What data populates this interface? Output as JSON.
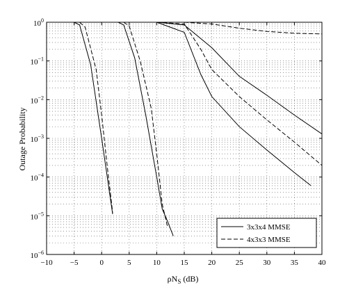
{
  "chart_data": {
    "type": "line",
    "title": "",
    "xlabel": {
      "main": "ρN",
      "sub": "S",
      "tail": " (dB)"
    },
    "ylabel": "Outage Probability",
    "xlim": [
      -10,
      40
    ],
    "ylim": [
      1e-06,
      1
    ],
    "yscale": "log",
    "grid": true,
    "x_ticks": [
      "−10",
      "−5",
      "0",
      "5",
      "10",
      "15",
      "20",
      "25",
      "30",
      "35",
      "40"
    ],
    "y_ticks": [
      {
        "base": "10",
        "exp": "0"
      },
      {
        "base": "10",
        "exp": "−1"
      },
      {
        "base": "10",
        "exp": "−2"
      },
      {
        "base": "10",
        "exp": "−3"
      },
      {
        "base": "10",
        "exp": "−4"
      },
      {
        "base": "10",
        "exp": "−5"
      },
      {
        "base": "10",
        "exp": "−6"
      }
    ],
    "legend": {
      "position": "bottom-right",
      "entries": [
        {
          "label": "3x3x4 MMSE",
          "style": "solid"
        },
        {
          "label": "4x3x3 MMSE",
          "style": "dashed"
        }
      ]
    },
    "series": [
      {
        "group": "3x3x4 MMSE",
        "style": "solid",
        "x": [
          -5,
          -4,
          -2,
          0,
          2
        ],
        "y": [
          1,
          0.85,
          0.08,
          0.001,
          1.1e-05
        ]
      },
      {
        "group": "3x3x4 MMSE",
        "style": "solid",
        "x": [
          3,
          4,
          6,
          8,
          10,
          11,
          12,
          13
        ],
        "y": [
          1,
          0.85,
          0.12,
          0.004,
          0.0001,
          1.5e-05,
          7e-06,
          3e-06
        ]
      },
      {
        "group": "3x3x4 MMSE",
        "style": "solid",
        "x": [
          10,
          15,
          18,
          20,
          25,
          30,
          35,
          38
        ],
        "y": [
          1,
          0.55,
          0.045,
          0.012,
          0.002,
          0.0005,
          0.00013,
          6e-05
        ]
      },
      {
        "group": "3x3x4 MMSE",
        "style": "solid",
        "x": [
          10,
          15,
          20,
          25,
          30,
          35,
          40
        ],
        "y": [
          1,
          0.85,
          0.22,
          0.04,
          0.013,
          0.004,
          0.0013
        ]
      },
      {
        "group": "4x3x3 MMSE",
        "style": "dashed",
        "x": [
          -4,
          -3,
          -1,
          0,
          1,
          2
        ],
        "y": [
          1,
          0.75,
          0.06,
          0.004,
          0.0002,
          1.2e-05
        ]
      },
      {
        "group": "4x3x3 MMSE",
        "style": "dashed",
        "x": [
          4,
          5,
          7,
          9,
          10,
          11,
          12
        ],
        "y": [
          1,
          0.8,
          0.1,
          0.006,
          0.0004,
          2e-05,
          5e-06
        ]
      },
      {
        "group": "4x3x3 MMSE",
        "style": "dashed",
        "x": [
          10,
          15,
          18,
          20,
          25,
          30,
          35,
          40
        ],
        "y": [
          1,
          0.9,
          0.2,
          0.06,
          0.012,
          0.003,
          0.0008,
          0.0002
        ]
      },
      {
        "group": "4x3x3 MMSE",
        "style": "dashed",
        "x": [
          15,
          20,
          25,
          30,
          35,
          40
        ],
        "y": [
          1,
          0.9,
          0.7,
          0.58,
          0.52,
          0.5
        ]
      }
    ]
  }
}
